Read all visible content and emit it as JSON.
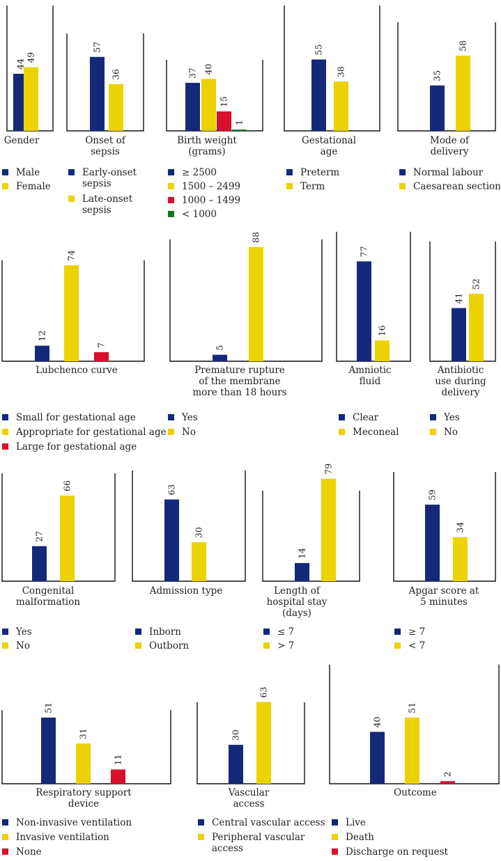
{
  "colors": {
    "blue": "#14297a",
    "yellow": "#ecd200",
    "red": "#d8102c",
    "green": "#0a7a22"
  },
  "chart_data": [
    {
      "type": "bar",
      "title": "Gender",
      "title_lines": [
        "Gender"
      ],
      "categories": [
        "Male",
        "Female"
      ],
      "values": [
        44,
        49
      ],
      "colors": [
        "blue",
        "yellow"
      ],
      "legend": [
        [
          "Male"
        ],
        [
          "Female"
        ]
      ]
    },
    {
      "type": "bar",
      "title": "Onset of sepsis",
      "title_lines": [
        "Onset of",
        "sepsis"
      ],
      "categories": [
        "Early-onset sepsis",
        "Late-onset sepsis"
      ],
      "values": [
        57,
        36
      ],
      "colors": [
        "blue",
        "yellow"
      ],
      "legend": [
        [
          "Early-onset",
          "sepsis"
        ],
        [
          "Late-onset",
          "sepsis"
        ]
      ]
    },
    {
      "type": "bar",
      "title": "Birth weight (grams)",
      "title_lines": [
        "Birth weight",
        "(grams)"
      ],
      "categories": [
        "≥ 2500",
        "1500 – 2499",
        "1000 – 1499",
        "< 1000"
      ],
      "values": [
        37,
        40,
        15,
        1
      ],
      "colors": [
        "blue",
        "yellow",
        "red",
        "green"
      ],
      "legend": [
        [
          "≥ 2500"
        ],
        [
          "1500 – 2499"
        ],
        [
          "1000 – 1499"
        ],
        [
          "< 1000"
        ]
      ]
    },
    {
      "type": "bar",
      "title": "Gestational age",
      "title_lines": [
        "Gestational",
        "age"
      ],
      "categories": [
        "Preterm",
        "Term"
      ],
      "values": [
        55,
        38
      ],
      "colors": [
        "blue",
        "yellow"
      ],
      "legend": [
        [
          "Preterm"
        ],
        [
          "Term"
        ]
      ]
    },
    {
      "type": "bar",
      "title": "Mode of delivery",
      "title_lines": [
        "Mode of",
        "delivery"
      ],
      "categories": [
        "Normal labour",
        "Caesarean section"
      ],
      "values": [
        35,
        58
      ],
      "colors": [
        "blue",
        "yellow"
      ],
      "legend": [
        [
          "Normal labour"
        ],
        [
          "Caesarean section"
        ]
      ]
    },
    {
      "type": "bar",
      "title": "Lubchenco curve",
      "title_lines": [
        "Lubchenco curve"
      ],
      "categories": [
        "Small for gestational age",
        "Appropriate for gestational age",
        "Large for gestational age"
      ],
      "values": [
        12,
        74,
        7
      ],
      "colors": [
        "blue",
        "yellow",
        "red"
      ],
      "legend": [
        [
          "Small for gestational age"
        ],
        [
          "Appropriate for gestational age"
        ],
        [
          "Large for gestational age"
        ]
      ]
    },
    {
      "type": "bar",
      "title": "Premature rupture of the membrane more than 18 hours",
      "title_lines": [
        "Premature rupture",
        "of the membrane",
        "more than 18 hours"
      ],
      "categories": [
        "Yes",
        "No"
      ],
      "values": [
        5,
        88
      ],
      "colors": [
        "blue",
        "yellow"
      ],
      "legend": [
        [
          "Yes"
        ],
        [
          "No"
        ]
      ]
    },
    {
      "type": "bar",
      "title": "Amniotic fluid",
      "title_lines": [
        "Amniotic",
        "fluid"
      ],
      "categories": [
        "Clear",
        "Meconeal"
      ],
      "values": [
        77,
        16
      ],
      "colors": [
        "blue",
        "yellow"
      ],
      "legend": [
        [
          "Clear"
        ],
        [
          "Meconeal"
        ]
      ]
    },
    {
      "type": "bar",
      "title": "Antibiotic use during delivery",
      "title_lines": [
        "Antibiotic",
        "use during",
        "delivery"
      ],
      "categories": [
        "Yes",
        "No"
      ],
      "values": [
        41,
        52
      ],
      "colors": [
        "blue",
        "yellow"
      ],
      "legend": [
        [
          "Yes"
        ],
        [
          "No"
        ]
      ]
    },
    {
      "type": "bar",
      "title": "Congenital malformation",
      "title_lines": [
        "Congenital",
        "malformation"
      ],
      "categories": [
        "Yes",
        "No"
      ],
      "values": [
        27,
        66
      ],
      "colors": [
        "blue",
        "yellow"
      ],
      "legend": [
        [
          "Yes"
        ],
        [
          "No"
        ]
      ]
    },
    {
      "type": "bar",
      "title": "Admission type",
      "title_lines": [
        "Admission type"
      ],
      "categories": [
        "Inborn",
        "Outborn"
      ],
      "values": [
        63,
        30
      ],
      "colors": [
        "blue",
        "yellow"
      ],
      "legend": [
        [
          "Inborn"
        ],
        [
          "Outborn"
        ]
      ]
    },
    {
      "type": "bar",
      "title": "Length of hospital stay (days)",
      "title_lines": [
        "Length of",
        "hospital stay",
        "(days)"
      ],
      "categories": [
        "≤ 7",
        "> 7"
      ],
      "values": [
        14,
        79
      ],
      "colors": [
        "blue",
        "yellow"
      ],
      "legend": [
        [
          "≤ 7"
        ],
        [
          "> 7"
        ]
      ]
    },
    {
      "type": "bar",
      "title": "Apgar score at 5 minutes",
      "title_lines": [
        "Apgar score at",
        "5 minutes"
      ],
      "categories": [
        "≥ 7",
        "< 7"
      ],
      "values": [
        59,
        34
      ],
      "colors": [
        "blue",
        "yellow"
      ],
      "legend": [
        [
          "≥ 7"
        ],
        [
          "< 7"
        ]
      ]
    },
    {
      "type": "bar",
      "title": "Respiratory support device",
      "title_lines": [
        "Respiratory support",
        "device"
      ],
      "categories": [
        "Non-invasive ventilation",
        "Invasive ventilation",
        "None"
      ],
      "values": [
        51,
        31,
        11
      ],
      "colors": [
        "blue",
        "yellow",
        "red"
      ],
      "legend": [
        [
          "Non-invasive ventilation"
        ],
        [
          "Invasive ventilation"
        ],
        [
          "None"
        ]
      ]
    },
    {
      "type": "bar",
      "title": "Vascular access",
      "title_lines": [
        "Vascular",
        "access"
      ],
      "categories": [
        "Central vascular access",
        "Peripheral vascular access"
      ],
      "values": [
        30,
        63
      ],
      "colors": [
        "blue",
        "yellow"
      ],
      "legend": [
        [
          "Central vascular access"
        ],
        [
          "Peripheral vascular",
          "access"
        ]
      ]
    },
    {
      "type": "bar",
      "title": "Outcome",
      "title_lines": [
        "Outcome"
      ],
      "categories": [
        "Live",
        "Death",
        "Discharge on request"
      ],
      "values": [
        40,
        51,
        2
      ],
      "colors": [
        "blue",
        "yellow",
        "red"
      ],
      "legend": [
        [
          "Live"
        ],
        [
          "Death"
        ],
        [
          "Discharge on request"
        ]
      ]
    }
  ]
}
